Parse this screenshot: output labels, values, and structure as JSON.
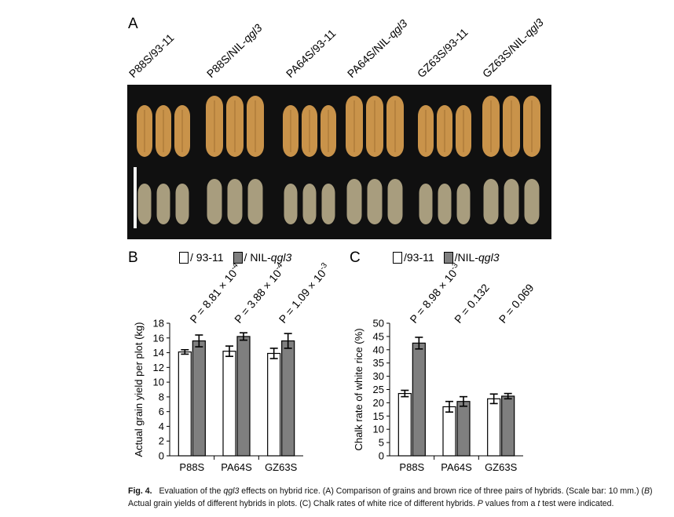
{
  "panels": {
    "a": "A",
    "b": "B",
    "c": "C"
  },
  "photo": {
    "genotypes": [
      {
        "prefix": "P88S/93-11",
        "italic": ""
      },
      {
        "prefix": "P88S/NIL-",
        "italic": "qgl3"
      },
      {
        "prefix": "PA64S/93-11",
        "italic": ""
      },
      {
        "prefix": "PA64S/NIL-",
        "italic": "qgl3"
      },
      {
        "prefix": "GZ63S/93-11",
        "italic": ""
      },
      {
        "prefix": "GZ63S/NIL-",
        "italic": "qgl3"
      }
    ],
    "background_color": "#101010",
    "grain_color": "#c9934a",
    "brown_rice_color": "#a89d7e"
  },
  "legend_b": {
    "label_white": "/ 93-11",
    "label_grey_prefix": "/ NIL-",
    "label_grey_italic": "qgl3"
  },
  "legend_c": {
    "label_white": "/93-11",
    "label_grey_prefix": "/NIL-",
    "label_grey_italic": "qgl3"
  },
  "colors": {
    "white_bar": "#ffffff",
    "grey_bar": "#7f7f7f",
    "outline": "#000000"
  },
  "chart_data": [
    {
      "type": "bar",
      "panel": "B",
      "ylabel": "Actual grain yield per plot (kg)",
      "categories": [
        "P88S",
        "PA64S",
        "GZ63S"
      ],
      "ylim": [
        0,
        18
      ],
      "yticks": [
        "0",
        "2",
        "4",
        "6",
        "8",
        "10",
        "12",
        "14",
        "16",
        "18"
      ],
      "series": [
        {
          "name": "/ 93-11",
          "values": [
            14.1,
            14.2,
            13.9
          ],
          "errors": [
            0.3,
            0.7,
            0.7
          ]
        },
        {
          "name": "/ NIL-qgl3",
          "values": [
            15.6,
            16.2,
            15.6
          ],
          "errors": [
            0.8,
            0.5,
            1.0
          ]
        }
      ],
      "annotations": [
        {
          "base": "P = 8.81 × 10",
          "exp": "-4"
        },
        {
          "base": "P = 3.88 × 10",
          "exp": "-4"
        },
        {
          "base": "P = 1.09 × 10",
          "exp": "-3"
        }
      ],
      "grid": false,
      "legend": "top"
    },
    {
      "type": "bar",
      "panel": "C",
      "ylabel": "Chalk rate of white rice (%)",
      "categories": [
        "P88S",
        "PA64S",
        "GZ63S"
      ],
      "ylim": [
        0,
        50
      ],
      "yticks": [
        "0",
        "5",
        "10",
        "15",
        "20",
        "25",
        "30",
        "35",
        "40",
        "45",
        "50"
      ],
      "series": [
        {
          "name": "/93-11",
          "values": [
            23.5,
            18.5,
            21.5
          ],
          "errors": [
            1.2,
            2.0,
            1.8
          ]
        },
        {
          "name": "/NIL-qgl3",
          "values": [
            42.5,
            20.5,
            22.5
          ],
          "errors": [
            2.2,
            1.8,
            1.0
          ]
        }
      ],
      "annotations": [
        {
          "base": "P = 8.98 × 10",
          "exp": "-3"
        },
        {
          "base": "P = 0.132",
          "exp": ""
        },
        {
          "base": "P = 0.069",
          "exp": ""
        }
      ],
      "grid": false,
      "legend": "top"
    }
  ],
  "caption": {
    "fig": "Fig. 4.",
    "t1": "Evaluation of the ",
    "gene": "qgl3",
    "t2": " effects on hybrid rice. (A) Comparison of grains and brown rice of three pairs of hybrids. (Scale bar: 10 mm.) (",
    "b": "B",
    "t3": ") Actual grain yields of different hybrids in plots. (C) Chalk rates of white rice of different hybrids. ",
    "p": "P",
    "t4": " values from a ",
    "t": "t",
    "t5": " test were indicated."
  }
}
